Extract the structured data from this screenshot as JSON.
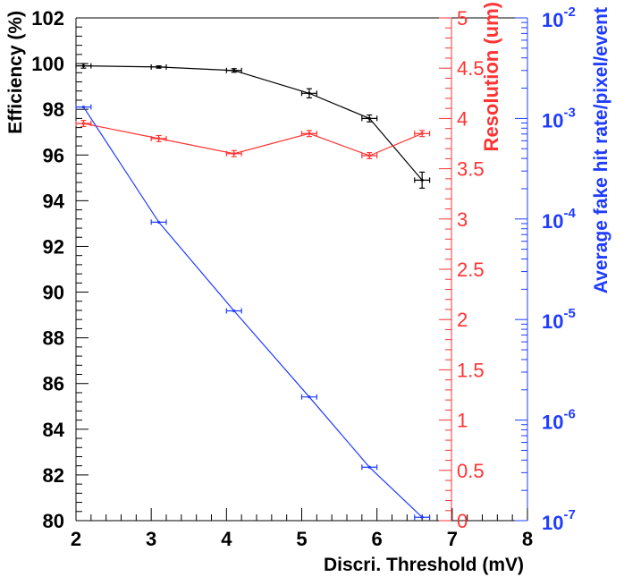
{
  "chart_data": {
    "type": "line",
    "xlabel": "Discri. Threshold (mV)",
    "xlim": [
      2,
      8
    ],
    "x_ticks": [
      "2",
      "3",
      "4",
      "5",
      "6",
      "7",
      "8"
    ],
    "axes": {
      "efficiency": {
        "label": "Efficiency (%)",
        "range": [
          80,
          102
        ],
        "ticks": [
          "80",
          "82",
          "84",
          "86",
          "88",
          "90",
          "92",
          "94",
          "96",
          "98",
          "100",
          "102"
        ],
        "color": "#000000"
      },
      "resolution": {
        "label": "Resolution (um)",
        "range": [
          0,
          5
        ],
        "ticks": [
          "0",
          "0.5",
          "1",
          "1.5",
          "2",
          "2.5",
          "3",
          "3.5",
          "4",
          "4.5",
          "5"
        ],
        "color": "#ff3333"
      },
      "fake_rate": {
        "label": "Average fake hit rate/pixel/event",
        "scale": "log",
        "range": [
          1e-07,
          0.01
        ],
        "tick_base": [
          "10",
          "10",
          "10",
          "10",
          "10",
          "10"
        ],
        "tick_exp": [
          "-7",
          "-6",
          "-5",
          "-4",
          "-3",
          "-2"
        ],
        "color": "#1f3cff"
      }
    },
    "series": [
      {
        "axis": "efficiency",
        "color": "#000000",
        "x": [
          2.1,
          3.1,
          4.1,
          5.1,
          5.9,
          6.6
        ],
        "y": [
          99.9,
          99.85,
          99.7,
          98.7,
          97.6,
          94.9
        ],
        "xerr": [
          0.1,
          0.1,
          0.1,
          0.1,
          0.1,
          0.1
        ],
        "yerr": [
          0.1,
          0.05,
          0.08,
          0.2,
          0.15,
          0.35
        ]
      },
      {
        "axis": "resolution",
        "color": "#ff3333",
        "x": [
          2.1,
          3.1,
          4.1,
          5.1,
          5.9,
          6.6
        ],
        "y": [
          3.95,
          3.8,
          3.65,
          3.85,
          3.63,
          3.85
        ],
        "xerr": [
          0.1,
          0.1,
          0.1,
          0.1,
          0.1,
          0.1
        ],
        "yerr": [
          0.03,
          0.03,
          0.03,
          0.03,
          0.03,
          0.03
        ]
      },
      {
        "axis": "fake_rate",
        "color": "#1f3cff",
        "x": [
          2.1,
          3.1,
          4.1,
          5.1,
          5.9,
          6.6
        ],
        "y": [
          0.0013,
          9.3e-05,
          1.22e-05,
          1.7e-06,
          3.4e-07,
          1.08e-07
        ],
        "xerr": [
          0.1,
          0.1,
          0.1,
          0.1,
          0.1,
          0.1
        ],
        "yerr": [
          0,
          0,
          0,
          0,
          0,
          0
        ]
      }
    ]
  }
}
